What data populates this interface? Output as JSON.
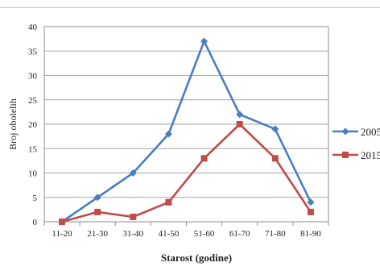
{
  "chart_data": {
    "type": "line",
    "title": "",
    "xlabel": "Starost (godine)",
    "ylabel": "Broj obolelih",
    "categories": [
      "11-20",
      "21-30",
      "31-40",
      "41-50",
      "51-60",
      "61-70",
      "71-80",
      "81-90"
    ],
    "ylim": [
      0,
      40
    ],
    "yticks": [
      0,
      5,
      10,
      15,
      20,
      25,
      30,
      35,
      40
    ],
    "grid": true,
    "legend_position": "right",
    "series": [
      {
        "name": "2005",
        "color": "#4a7ebf",
        "marker": "diamond",
        "values": [
          0,
          5,
          10,
          18,
          37,
          22,
          19,
          4
        ]
      },
      {
        "name": "2015",
        "color": "#bf4b4b",
        "marker": "square",
        "values": [
          0,
          2,
          1,
          4,
          13,
          20,
          13,
          2
        ]
      }
    ]
  }
}
